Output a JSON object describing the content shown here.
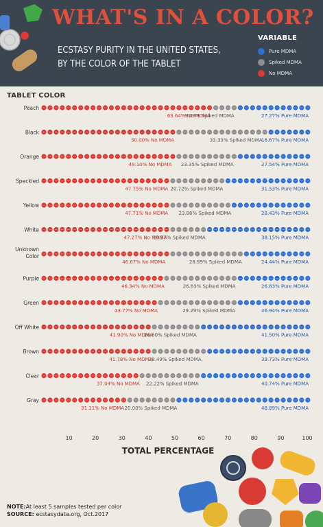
{
  "header": {
    "title": "WHAT'S IN A COLOR?",
    "subtitle_line1": "ECSTASY PURITY IN THE UNITED STATES,",
    "subtitle_line2": "BY THE COLOR OF THE TABLET"
  },
  "legend": {
    "title": "VARIABLE",
    "items": [
      {
        "label": "Pure MDMA",
        "color": "#2e6fd2"
      },
      {
        "label": "Spiked MDMA",
        "color": "#8e8e8e"
      },
      {
        "label": "No MDMA",
        "color": "#d93a33"
      }
    ]
  },
  "colors": {
    "no": "#d93a33",
    "spiked": "#8e8e8e",
    "pure": "#2e6fd2",
    "header_bg": "#3a4550",
    "title": "#e0503c"
  },
  "chart_data": {
    "type": "bar",
    "stacked": true,
    "ylabel": "TABLET COLOR",
    "xlabel": "TOTAL PERCENTAGE",
    "xticks": [
      10,
      20,
      30,
      40,
      50,
      60,
      70,
      80,
      90,
      100
    ],
    "categories": [
      "Peach",
      "Black",
      "Orange",
      "Speckled",
      "Yellow",
      "White",
      "Unknown Color",
      "Purple",
      "Green",
      "Off White",
      "Brown",
      "Clear",
      "Gray"
    ],
    "category_labels": [
      "Peach",
      "Black",
      "Orange",
      "Speckled",
      "Yellow",
      "White",
      "Unknown\nColor",
      "Purple",
      "Green",
      "Off White",
      "Brown",
      "Clear",
      "Gray"
    ],
    "series": [
      {
        "name": "No MDMA",
        "values": [
          63.64,
          50.0,
          49.1,
          47.75,
          47.71,
          47.27,
          46.67,
          46.34,
          43.77,
          41.9,
          41.78,
          37.04,
          31.11
        ],
        "labels": [
          "63.64% No MDMA",
          "50.00% No MDMA",
          "49.10% No MDMA",
          "47.75% No MDMA",
          "47.71% No MDMA",
          "47.27% No MDMA",
          "46.67% No MDMA",
          "46.34% No MDMA",
          "43.77% No MDMA",
          "41.90% No MDMA",
          "41.78% No MDMA",
          "37.04% No MDMA",
          "31.11% No MDMA"
        ]
      },
      {
        "name": "Spiked MDMA",
        "values": [
          9.09,
          33.33,
          23.35,
          20.72,
          23.86,
          14.57,
          28.89,
          26.83,
          29.29,
          16.6,
          18.49,
          22.22,
          20.0
        ],
        "labels": [
          "9.09% Spiked MDMA",
          "33.33% Spiked MDMA",
          "23.35% Spiked MDMA",
          "20.72% Spiked MDMA",
          "23.86% Spiked MDMA",
          "14.57% Spiked MDMA",
          "28.89% Spiked MDMA",
          "26.83% Spiked MDMA",
          "29.29% Spiked MDMA",
          "16.60% Spiked MDMA",
          "18.49% Spiked MDMA",
          "22.22% Spiked MDMA",
          "20.00% Spiked MDMA"
        ]
      },
      {
        "name": "Pure MDMA",
        "values": [
          27.27,
          16.67,
          27.54,
          31.53,
          28.43,
          38.15,
          24.44,
          26.83,
          26.94,
          41.5,
          39.73,
          40.74,
          48.89
        ],
        "labels": [
          "27.27% Pure MDMA",
          "16.67% Pure MDMA",
          "27.54% Pure MDMA",
          "31.53% Pure MDMA",
          "28.43% Pure MDMA",
          "38.15% Pure MDMA",
          "24.44% Pure MDMA",
          "26.83% Pure MDMA",
          "26.94% Pure MDMA",
          "41.50% Pure MDMA",
          "39.73% Pure MDMA",
          "40.74% Pure MDMA",
          "48.89% Pure MDMA"
        ]
      }
    ]
  },
  "footer": {
    "note_label": "NOTE:",
    "note_text": "At least 5 samples tested per color",
    "source_label": "SOURCE:",
    "source_text": "ecstasydata.org, Oct.2017"
  }
}
